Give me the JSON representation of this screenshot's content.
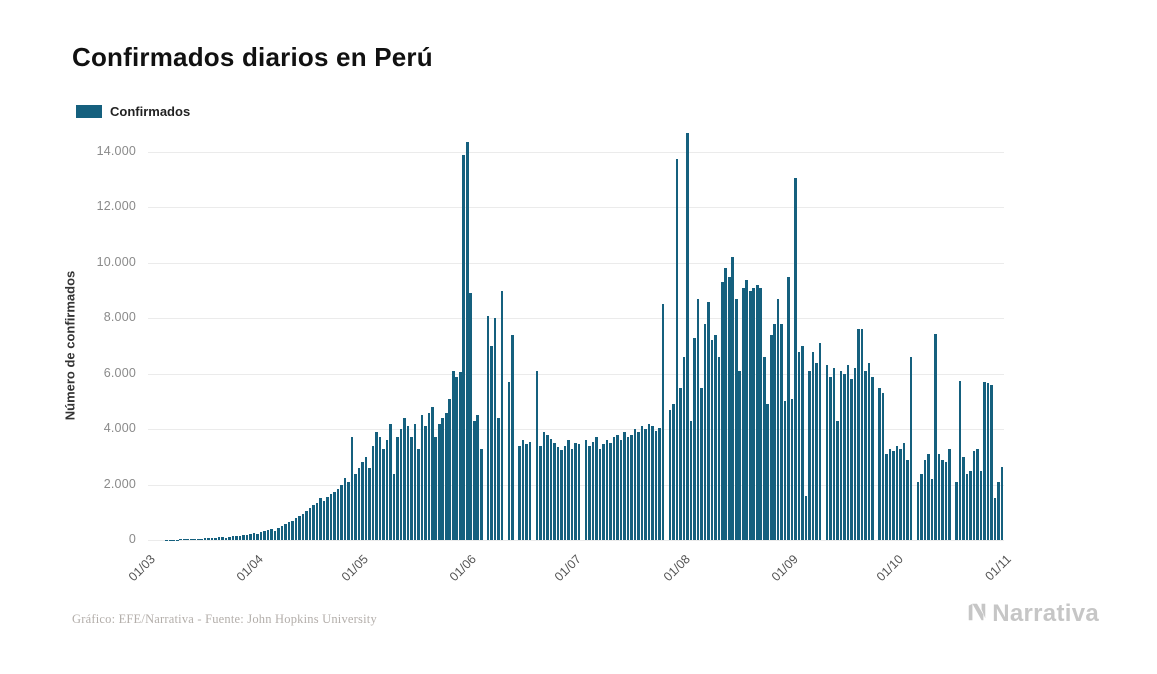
{
  "page": {
    "title": "Confirmados diarios en Perú",
    "footer": "Gráfico: EFE/Narrativa - Fuente: John Hopkins University",
    "brand": "Narrativa"
  },
  "legend": {
    "label": "Confirmados",
    "color": "#15607e"
  },
  "chart_data": {
    "type": "bar",
    "title": "Confirmados diarios en Perú",
    "xlabel": "",
    "ylabel": "Número de confirmados",
    "ylim": [
      0,
      14000
    ],
    "ytick_step": 2000,
    "ytick_labels": [
      "0",
      "2.000",
      "4.000",
      "6.000",
      "8.000",
      "10.000",
      "12.000",
      "14.000"
    ],
    "xtick_labels": [
      "01/03",
      "01/04",
      "01/05",
      "01/06",
      "01/07",
      "01/08",
      "01/09",
      "01/10",
      "01/11"
    ],
    "xtick_positions": [
      0,
      31,
      61,
      92,
      122,
      153,
      184,
      214,
      245
    ],
    "grid": true,
    "legend_position": "top-left",
    "bar_color": "#15607e",
    "series": [
      {
        "name": "Confirmados",
        "values": [
          0,
          0,
          0,
          0,
          0,
          8,
          6,
          11,
          15,
          20,
          28,
          34,
          30,
          43,
          40,
          38,
          55,
          70,
          65,
          80,
          95,
          105,
          90,
          120,
          140,
          130,
          155,
          180,
          170,
          210,
          250,
          230,
          280,
          320,
          360,
          400,
          330,
          450,
          520,
          580,
          640,
          700,
          780,
          860,
          950,
          1050,
          1150,
          1250,
          1350,
          1500,
          1400,
          1550,
          1650,
          1750,
          1850,
          2000,
          2250,
          2100,
          3700,
          2400,
          2600,
          2800,
          3000,
          2600,
          3400,
          3900,
          3700,
          3300,
          3600,
          4200,
          2400,
          3700,
          4000,
          4400,
          4100,
          3700,
          4200,
          3300,
          4500,
          4100,
          4600,
          4800,
          3700,
          4200,
          4400,
          4600,
          5100,
          6100,
          5900,
          6050,
          13900,
          14350,
          8900,
          4300,
          4500,
          3300,
          0,
          8100,
          7000,
          8000,
          4400,
          9000,
          0,
          5700,
          7400,
          0,
          3400,
          3600,
          3450,
          3550,
          0,
          6100,
          3400,
          3900,
          3800,
          3650,
          3500,
          3350,
          3250,
          3400,
          3600,
          3300,
          3500,
          3450,
          0,
          3600,
          3400,
          3550,
          3700,
          3300,
          3450,
          3600,
          3500,
          3700,
          3800,
          3600,
          3900,
          3700,
          3800,
          4000,
          3900,
          4100,
          4000,
          4200,
          4100,
          3950,
          4050,
          8500,
          0,
          4700,
          4900,
          13750,
          5500,
          6600,
          14700,
          4300,
          7300,
          8700,
          5500,
          7800,
          8600,
          7200,
          7400,
          6600,
          9300,
          9800,
          9500,
          10200,
          8700,
          6100,
          9100,
          9400,
          9000,
          9100,
          9200,
          9100,
          6600,
          4900,
          7400,
          7800,
          8700,
          7800,
          5000,
          9500,
          5100,
          13050,
          6800,
          7000,
          1600,
          6100,
          6800,
          6400,
          7100,
          0,
          6300,
          5900,
          6200,
          4300,
          6100,
          6000,
          6300,
          5800,
          6200,
          7600,
          7600,
          6100,
          6400,
          5900,
          0,
          5500,
          5300,
          3100,
          3300,
          3200,
          3400,
          3300,
          3500,
          2900,
          6600,
          0,
          2100,
          2400,
          2900,
          3100,
          2200,
          7450,
          3100,
          2900,
          2800,
          3300,
          0,
          2100,
          5750,
          3000,
          2400,
          2500,
          3200,
          3300,
          2500,
          5700,
          5650,
          5600,
          1500,
          2100,
          2650
        ]
      }
    ]
  }
}
